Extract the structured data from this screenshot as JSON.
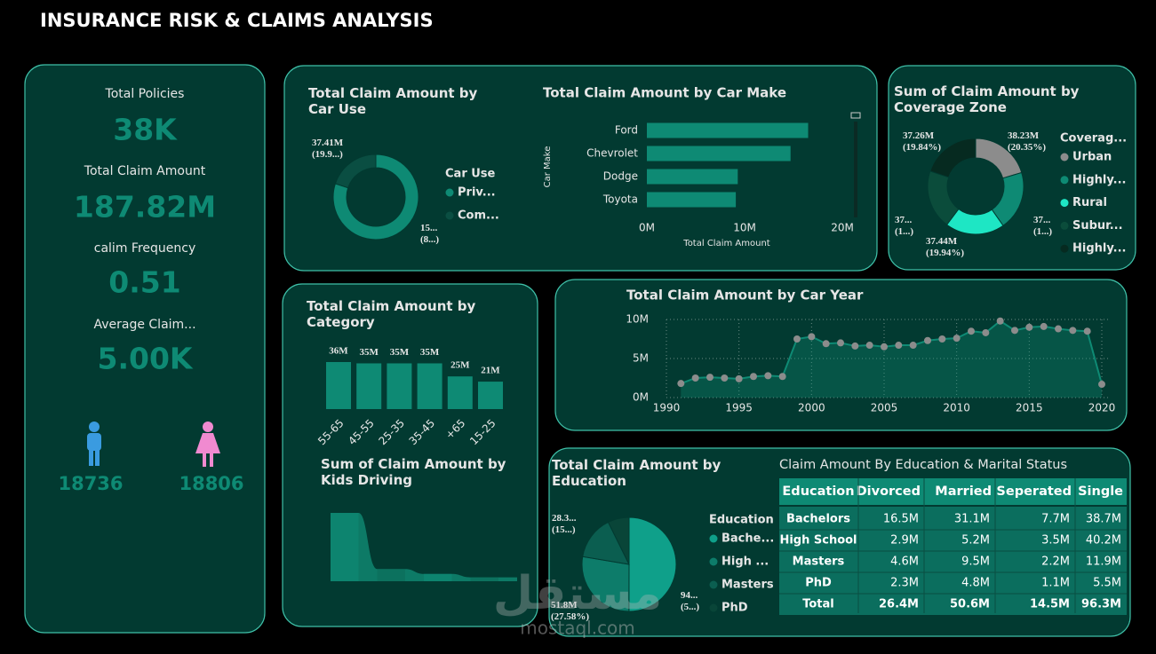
{
  "title": "INSURANCE RISK & CLAIMS ANALYSIS",
  "kpis": [
    {
      "label": "Total Policies",
      "value": "38K"
    },
    {
      "label": "Total Claim Amount",
      "value": "187.82M"
    },
    {
      "label": "calim Frequency",
      "value": "0.51"
    },
    {
      "label": "Average Claim...",
      "value": "5.00K"
    }
  ],
  "gender": {
    "values": [
      18736,
      18806
    ]
  },
  "chart_data": [
    {
      "type": "donut",
      "title": "Total Claim Amount by Car Use",
      "legend_title": "Car Use",
      "categories": [
        "Priv...",
        "Com..."
      ],
      "values": [
        150.41,
        37.41
      ],
      "value_labels": [
        "15...\n(8...)",
        "37.41M\n(19.9...)"
      ],
      "colors": [
        "#0e8a74",
        "#0a4e42"
      ]
    },
    {
      "type": "bar",
      "orientation": "horizontal",
      "title": "Total Claim Amount by Car Make",
      "x_label": "Total Claim Amount",
      "y_label": "Car Make",
      "categories": [
        "Ford",
        "Chevrolet",
        "Dodge",
        "Toyota"
      ],
      "values": [
        16.5,
        14.7,
        9.3,
        9.1
      ],
      "color": "#0e8a74",
      "xlim": [
        0,
        20
      ],
      "xticks": [
        {
          "value": 0,
          "label": "0M"
        },
        {
          "value": 10,
          "label": "10M"
        },
        {
          "value": 20,
          "label": "20M"
        }
      ]
    },
    {
      "type": "donut",
      "title": "Sum of Claim Amount by Coverage Zone",
      "legend_title": "Coverag...",
      "categories": [
        "Urban",
        "Highly...",
        "Rural",
        "Subur...",
        "Highly..."
      ],
      "values": [
        38.23,
        37.45,
        37.44,
        37.44,
        37.26
      ],
      "value_labels": [
        "38.23M\n(20.35%)",
        "37...\n(1...)",
        "37.44M\n(19.94%)",
        "37...\n(1...)",
        "37.26M\n(19.84%)"
      ],
      "colors": [
        "#8c8c8c",
        "#0e8a74",
        "#1ee6c4",
        "#0b4c3b",
        "#062a20"
      ]
    },
    {
      "type": "bar",
      "title": "Total Claim Amount by Category",
      "categories": [
        "55-65",
        "45-55",
        "25-35",
        "35-45",
        "+65",
        "15-25"
      ],
      "values": [
        36,
        35,
        35,
        35,
        25,
        21
      ],
      "value_labels": [
        "36M",
        "35M",
        "35M",
        "35M",
        "25M",
        "21M"
      ],
      "color": "#0e8a74"
    },
    {
      "type": "area",
      "title": "Sum of Claim Amount by Kids Driving",
      "categories": [
        null,
        null,
        null,
        null
      ],
      "values": [
        140,
        25,
        15,
        8
      ],
      "color": "#0d7a66"
    },
    {
      "type": "line",
      "title": "Total Claim Amount by Car Year",
      "x": [
        1991,
        1992,
        1993,
        1994,
        1995,
        1996,
        1997,
        1998,
        1999,
        2000,
        2001,
        2002,
        2003,
        2004,
        2005,
        2006,
        2007,
        2008,
        2009,
        2010,
        2011,
        2012,
        2013,
        2014,
        2015,
        2016,
        2017,
        2018,
        2019,
        2020
      ],
      "values": [
        1.8,
        2.5,
        2.6,
        2.5,
        2.4,
        2.7,
        2.8,
        2.7,
        7.5,
        7.8,
        6.9,
        7.0,
        6.6,
        6.7,
        6.5,
        6.7,
        6.7,
        7.3,
        7.5,
        7.6,
        8.5,
        8.3,
        9.8,
        8.6,
        9.0,
        9.1,
        8.8,
        8.6,
        8.5,
        1.7
      ],
      "color": "#0e8a74",
      "marker_color": "#8c8c8c",
      "xlim": [
        1990,
        2020
      ],
      "xticks": [
        1990,
        1995,
        2000,
        2005,
        2010,
        2015,
        2020
      ],
      "ylim": [
        0,
        10
      ],
      "yticks": [
        {
          "value": 0,
          "label": "0M"
        },
        {
          "value": 5,
          "label": "5M"
        },
        {
          "value": 10,
          "label": "10M"
        }
      ],
      "grid": true
    },
    {
      "type": "pie",
      "title": "Total Claim Amount by Education",
      "legend_title": "Education",
      "categories": [
        "Bache...",
        "High ...",
        "Masters",
        "PhD"
      ],
      "values": [
        94.0,
        51.8,
        28.3,
        13.7
      ],
      "value_labels": [
        "94...\n(5...)",
        "51.8M\n(27.58%)",
        "28.3...\n(15...)",
        null
      ],
      "colors": [
        "#0fa08a",
        "#0d7c6a",
        "#0b5e50",
        "#094538"
      ]
    }
  ],
  "table": {
    "title": "Claim Amount By Education & Marital Status",
    "header": [
      "Education",
      "Divorced",
      "Married",
      "Seperated",
      "Single"
    ],
    "rows": [
      [
        "Bachelors",
        "16.5M",
        "31.1M",
        "7.7M",
        "38.7M"
      ],
      [
        "High School",
        "2.9M",
        "5.2M",
        "3.5M",
        "40.2M"
      ],
      [
        "Masters",
        "4.6M",
        "9.5M",
        "2.2M",
        "11.9M"
      ],
      [
        "PhD",
        "2.3M",
        "4.8M",
        "1.1M",
        "5.5M"
      ]
    ],
    "total": [
      "Total",
      "26.4M",
      "50.6M",
      "14.5M",
      "96.3M"
    ]
  },
  "watermark": {
    "logo": "مستقل",
    "text": "mostaql.com"
  }
}
